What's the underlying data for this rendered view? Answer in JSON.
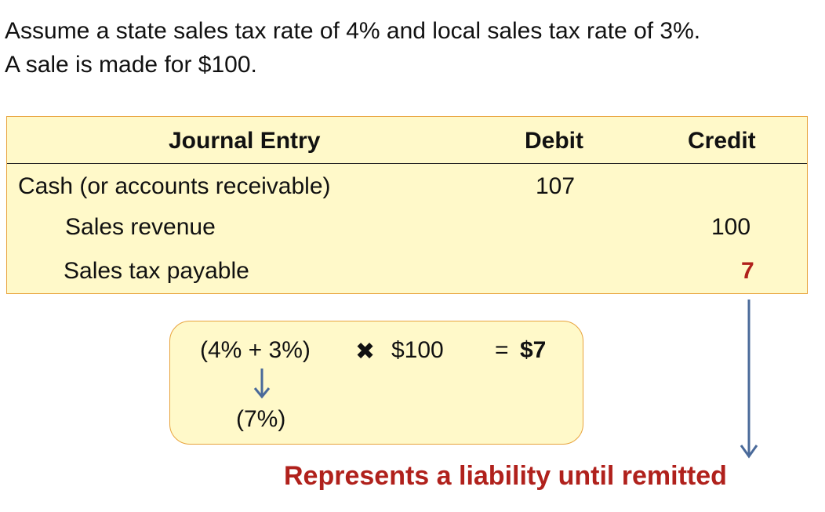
{
  "intro": {
    "line1": "Assume a state sales tax rate of 4% and local sales tax rate of 3%.",
    "line2": "A sale is made for $100."
  },
  "journal": {
    "headers": {
      "entry": "Journal Entry",
      "debit": "Debit",
      "credit": "Credit"
    },
    "rows": [
      {
        "account": "Cash (or accounts receivable)",
        "debit": "107",
        "credit": ""
      },
      {
        "account": "Sales revenue",
        "debit": "",
        "credit": "100"
      },
      {
        "account": "Sales tax payable",
        "debit": "",
        "credit": "7"
      }
    ]
  },
  "calculation": {
    "rates": "(4% + 3%)",
    "times": "✖",
    "base": "$100",
    "equals": "=",
    "result": "$7",
    "combined_rate": "(7%)"
  },
  "note": "Represents a liability until remitted",
  "colors": {
    "box_fill": "#fff9c9",
    "box_border": "#e8a33c",
    "emphasis_red": "#b0211c",
    "arrow_blue": "#4a6a9a"
  }
}
